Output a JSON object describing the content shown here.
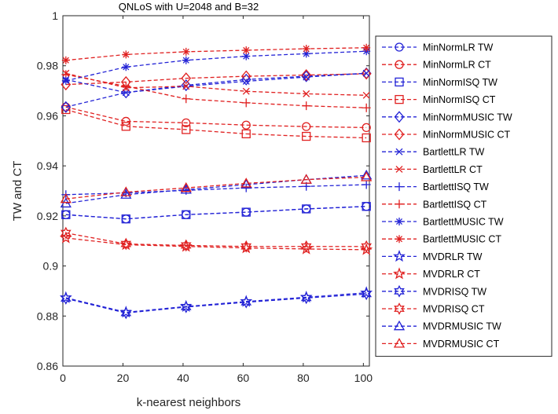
{
  "chart_data": {
    "type": "line",
    "title": "QNLoS with U=2048 and B=32",
    "xlabel": "k-nearest neighbors",
    "ylabel": "TW and CT",
    "xlim": [
      0,
      102
    ],
    "ylim": [
      0.86,
      1.0
    ],
    "xticks": [
      0,
      20,
      40,
      60,
      80,
      100
    ],
    "yticks": [
      0.86,
      0.88,
      0.9,
      0.92,
      0.94,
      0.96,
      0.98,
      1.0
    ],
    "xtick_labels": [
      "0",
      "20",
      "40",
      "60",
      "80",
      "100"
    ],
    "ytick_labels": [
      "0.86",
      "0.88",
      "0.9",
      "0.92",
      "0.94",
      "0.96",
      "0.98",
      "1"
    ],
    "grid": false,
    "legend_position": "outside-right",
    "line_style": "dashed",
    "x": [
      1,
      21,
      41,
      61,
      81,
      101
    ],
    "series": [
      {
        "name": "MinNormLR TW",
        "color": "#2323d6",
        "marker": "circle",
        "values": [
          0.9205,
          0.9188,
          0.9205,
          0.9215,
          0.9228,
          0.9238
        ]
      },
      {
        "name": "MinNormLR CT",
        "color": "#e02020",
        "marker": "circle",
        "values": [
          0.9635,
          0.9578,
          0.9572,
          0.9563,
          0.9557,
          0.9553
        ]
      },
      {
        "name": "MinNormISQ TW",
        "color": "#2323d6",
        "marker": "square",
        "values": [
          0.9205,
          0.9188,
          0.9205,
          0.9215,
          0.9228,
          0.9238
        ]
      },
      {
        "name": "MinNormISQ CT",
        "color": "#e02020",
        "marker": "square",
        "values": [
          0.9625,
          0.9558,
          0.9545,
          0.9528,
          0.9518,
          0.9512
        ]
      },
      {
        "name": "MinNormMUSIC TW",
        "color": "#2323d6",
        "marker": "diamond",
        "values": [
          0.9635,
          0.9693,
          0.9722,
          0.9745,
          0.9758,
          0.977
        ]
      },
      {
        "name": "MinNormMUSIC CT",
        "color": "#e02020",
        "marker": "diamond",
        "values": [
          0.9725,
          0.9735,
          0.975,
          0.9758,
          0.9763,
          0.9768
        ]
      },
      {
        "name": "BartlettLR TW",
        "color": "#2323d6",
        "marker": "x",
        "values": [
          0.9745,
          0.9693,
          0.9718,
          0.9738,
          0.9755,
          0.977
        ]
      },
      {
        "name": "BartlettLR CT",
        "color": "#e02020",
        "marker": "x",
        "values": [
          0.977,
          0.9712,
          0.9718,
          0.9698,
          0.9688,
          0.9682
        ]
      },
      {
        "name": "BartlettISQ TW",
        "color": "#2323d6",
        "marker": "plus",
        "values": [
          0.9285,
          0.9292,
          0.9302,
          0.9312,
          0.9318,
          0.9325
        ]
      },
      {
        "name": "BartlettISQ CT",
        "color": "#e02020",
        "marker": "plus",
        "values": [
          0.9765,
          0.9718,
          0.9668,
          0.9652,
          0.964,
          0.9632
        ]
      },
      {
        "name": "BartlettMUSIC TW",
        "color": "#2323d6",
        "marker": "asterisk",
        "values": [
          0.974,
          0.9795,
          0.9822,
          0.9838,
          0.9848,
          0.9858
        ]
      },
      {
        "name": "BartlettMUSIC CT",
        "color": "#e02020",
        "marker": "asterisk",
        "values": [
          0.9822,
          0.9845,
          0.9856,
          0.9862,
          0.9868,
          0.9872
        ]
      },
      {
        "name": "MVDRLR TW",
        "color": "#2323d6",
        "marker": "pentagram",
        "values": [
          0.8873,
          0.8815,
          0.8838,
          0.8858,
          0.8875,
          0.8893
        ]
      },
      {
        "name": "MVDRLR CT",
        "color": "#e02020",
        "marker": "pentagram",
        "values": [
          0.9112,
          0.9085,
          0.9078,
          0.9072,
          0.9068,
          0.9065
        ]
      },
      {
        "name": "MVDRISQ TW",
        "color": "#2323d6",
        "marker": "hexagram",
        "values": [
          0.887,
          0.8812,
          0.8836,
          0.8855,
          0.8872,
          0.8888
        ]
      },
      {
        "name": "MVDRISQ CT",
        "color": "#e02020",
        "marker": "hexagram",
        "values": [
          0.9132,
          0.9088,
          0.9082,
          0.9078,
          0.9078,
          0.9078
        ]
      },
      {
        "name": "MVDRMUSIC TW",
        "color": "#2323d6",
        "marker": "triangle",
        "values": [
          0.925,
          0.9285,
          0.9305,
          0.9325,
          0.9345,
          0.9362
        ]
      },
      {
        "name": "MVDRMUSIC CT",
        "color": "#e02020",
        "marker": "triangle",
        "values": [
          0.9268,
          0.9295,
          0.9312,
          0.933,
          0.9345,
          0.9355
        ]
      }
    ]
  }
}
